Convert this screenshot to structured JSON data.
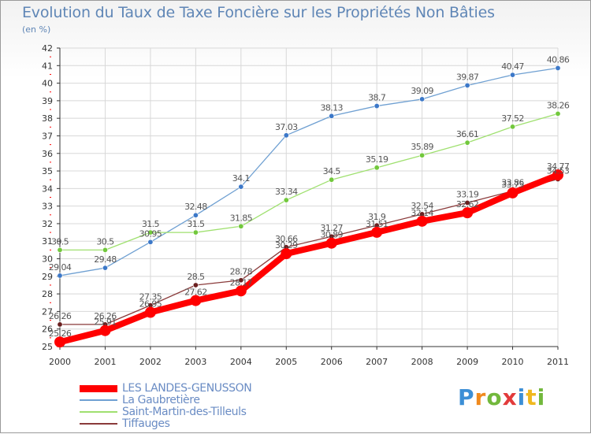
{
  "header": {
    "title": "Evolution du Taux de Taxe Foncière sur les Propriétés Non Bâties",
    "unit": "(en %)"
  },
  "brand": {
    "name": "Proxiti"
  },
  "colors": {
    "background": "#ffffff",
    "grid": "#d8d8d8",
    "axis": "#333333",
    "tick_mark": "#ff0000",
    "text": "#5f86b6"
  },
  "chart_data": {
    "type": "line",
    "x": [
      "2000",
      "2001",
      "2002",
      "2003",
      "2004",
      "2005",
      "2006",
      "2007",
      "2008",
      "2009",
      "2010",
      "2011"
    ],
    "ylim": [
      25,
      42
    ],
    "yticks": [
      25,
      26,
      27,
      28,
      29,
      30,
      31,
      32,
      33,
      34,
      35,
      36,
      37,
      38,
      39,
      40,
      41,
      42
    ],
    "grid": true,
    "legend_position": "bottom-left",
    "series": [
      {
        "name": "LES LANDES-GENUSSON",
        "color": "#ff0000",
        "marker": "#ff0000",
        "emphasis": true,
        "values": [
          25.26,
          25.91,
          26.95,
          27.62,
          28.17,
          30.29,
          30.89,
          31.51,
          32.14,
          32.62,
          33.75,
          34.77
        ],
        "labels": [
          "25.26",
          "25.91",
          "26.95",
          "27.62",
          "28.17",
          "30.29",
          "30.89",
          "31.51",
          "32.14",
          "32.62",
          "33.75",
          "34.77"
        ]
      },
      {
        "name": "La Gaubretière",
        "color": "#6fa0d2",
        "marker": "#3c78c8",
        "values": [
          29.04,
          29.48,
          30.95,
          32.48,
          34.1,
          37.03,
          38.13,
          38.7,
          39.09,
          39.87,
          40.47,
          40.86
        ],
        "labels": [
          "29.04",
          "29.48",
          "30.95",
          "32.48",
          "34.1",
          "37.03",
          "38.13",
          "38.7",
          "39.09",
          "39.87",
          "40.47",
          "40.86"
        ]
      },
      {
        "name": "Saint-Martin-des-Tilleuls",
        "color": "#9fe06f",
        "marker": "#72c83c",
        "values": [
          30.5,
          30.5,
          31.5,
          31.5,
          31.85,
          33.34,
          34.5,
          35.19,
          35.89,
          36.61,
          37.52,
          38.26
        ],
        "labels": [
          "30.5",
          "30.5",
          "31.5",
          "31.5",
          "31.85",
          "33.34",
          "34.5",
          "35.19",
          "35.89",
          "36.61",
          "37.52",
          "38.26"
        ]
      },
      {
        "name": "Tiffauges",
        "color": "#8a3a3a",
        "marker": "#6a1f1f",
        "values": [
          26.26,
          26.26,
          27.35,
          28.5,
          28.78,
          30.66,
          31.27,
          31.9,
          32.54,
          33.19,
          33.86,
          34.53
        ],
        "labels": [
          "26.26",
          "26.26",
          "27.35",
          "28.5",
          "28.78",
          "30.66",
          "31.27",
          "31.9",
          "32.54",
          "33.19",
          "33.86",
          "34.53"
        ]
      }
    ]
  }
}
